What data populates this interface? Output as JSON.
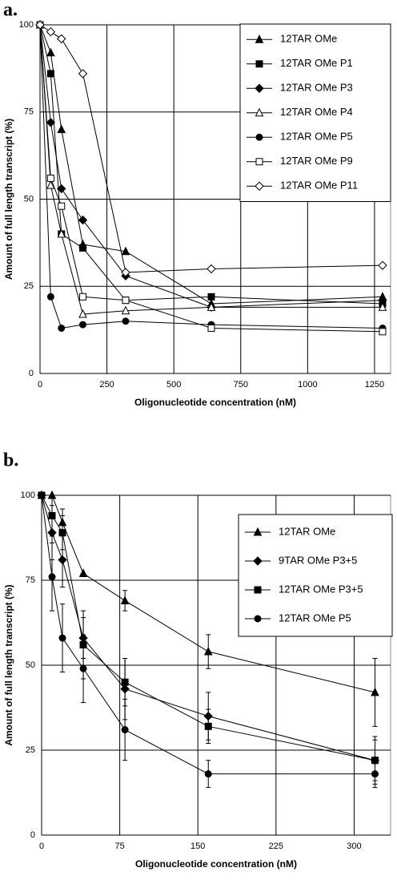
{
  "chart_data": [
    {
      "type": "line",
      "label": "a.",
      "xlabel": "Oligonucleotide concentration (nM)",
      "ylabel": "Amount of full length transcript (%)",
      "x": [
        0,
        40,
        80,
        160,
        320,
        640,
        1280
      ],
      "xlim": [
        0,
        1310
      ],
      "xticks": [
        0,
        250,
        500,
        750,
        1000,
        1250
      ],
      "ylim": [
        0,
        100
      ],
      "yticks": [
        0,
        25,
        50,
        75,
        100
      ],
      "grid": true,
      "legend": "upper right",
      "series": [
        {
          "name": "12TAR OMe",
          "color": "#000000",
          "marker": "triangle",
          "filled": true,
          "values": [
            100,
            92,
            70,
            37,
            35,
            20,
            22
          ]
        },
        {
          "name": "12TAR OMe P1",
          "color": "#000000",
          "marker": "square",
          "filled": true,
          "values": [
            100,
            86,
            40,
            36,
            21,
            22,
            20
          ]
        },
        {
          "name": "12TAR OMe P3",
          "color": "#000000",
          "marker": "diamond",
          "filled": true,
          "values": [
            100,
            72,
            53,
            44,
            28,
            19,
            21
          ]
        },
        {
          "name": "12TAR OMe P4",
          "color": "#000000",
          "marker": "triangle",
          "filled": false,
          "values": [
            100,
            54,
            40,
            17,
            18,
            19,
            19
          ]
        },
        {
          "name": "12TAR OMe P5",
          "color": "#000000",
          "marker": "circle",
          "filled": true,
          "values": [
            100,
            22,
            13,
            14,
            15,
            14,
            13
          ]
        },
        {
          "name": "12TAR OMe P9",
          "color": "#000000",
          "marker": "square",
          "filled": false,
          "values": [
            100,
            56,
            48,
            22,
            21,
            13,
            12
          ]
        },
        {
          "name": "12TAR OMe P11",
          "color": "#000000",
          "marker": "diamond",
          "filled": false,
          "values": [
            100,
            98,
            96,
            86,
            29,
            30,
            31
          ]
        }
      ]
    },
    {
      "type": "line",
      "label": "b.",
      "xlabel": "Oligonucleotide concentration (nM)",
      "ylabel": "Amount of full length transcript (%)",
      "x": [
        0,
        10,
        20,
        40,
        80,
        160,
        320
      ],
      "xlim": [
        0,
        335
      ],
      "xticks": [
        0,
        75,
        150,
        225,
        300
      ],
      "ylim": [
        0,
        100
      ],
      "yticks": [
        0,
        25,
        50,
        75,
        100
      ],
      "grid": true,
      "legend": "upper right",
      "series": [
        {
          "name": "12TAR OMe",
          "color": "#000000",
          "marker": "triangle",
          "filled": true,
          "values": [
            100,
            100,
            92,
            77,
            69,
            54,
            42
          ],
          "errors": [
            0,
            0,
            4,
            0,
            3,
            5,
            10
          ]
        },
        {
          "name": "9TAR OMe P3+5",
          "color": "#000000",
          "marker": "diamond",
          "filled": true,
          "values": [
            100,
            89,
            81,
            58,
            43,
            35,
            22
          ],
          "errors": [
            0,
            8,
            8,
            6,
            9,
            7,
            6
          ]
        },
        {
          "name": "12TAR OMe P3+5",
          "color": "#000000",
          "marker": "square",
          "filled": true,
          "values": [
            100,
            94,
            89,
            56,
            45,
            32,
            22
          ],
          "errors": [
            0,
            6,
            5,
            10,
            7,
            5,
            7
          ]
        },
        {
          "name": "12TAR OMe P5",
          "color": "#000000",
          "marker": "circle",
          "filled": true,
          "values": [
            100,
            76,
            58,
            49,
            31,
            18,
            18
          ],
          "errors": [
            0,
            10,
            10,
            10,
            9,
            4,
            4
          ]
        }
      ]
    }
  ]
}
